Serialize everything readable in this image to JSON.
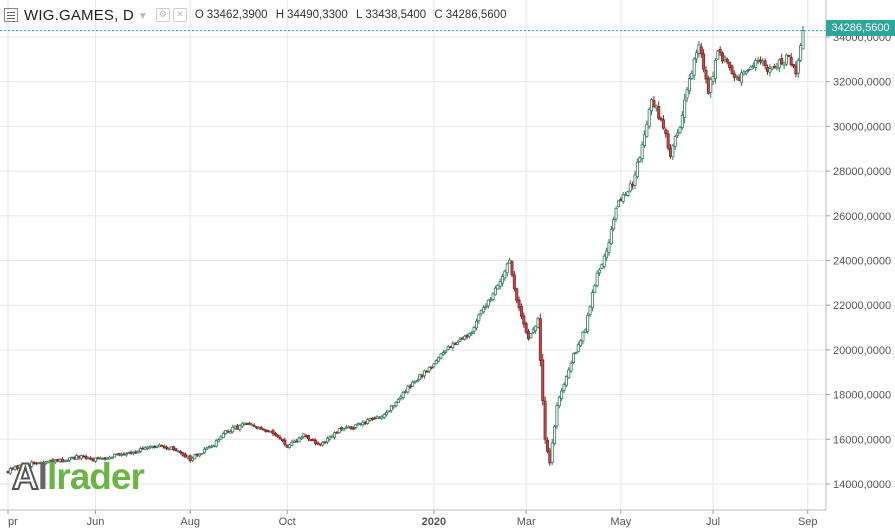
{
  "header": {
    "symbol": "WIG.GAMES, D",
    "o_key": "O",
    "o_val": "33462,3900",
    "h_key": "H",
    "h_val": "34490,3300",
    "l_key": "L",
    "l_val": "33438,5400",
    "c_key": "C",
    "c_val": "34286,5600"
  },
  "last_price_label": "34286,5600",
  "watermark": {
    "part1": "A",
    "part2": "l",
    "part3": "lrader"
  },
  "colors": {
    "up_fill": "#ffffff",
    "up_border": "#2f7a5a",
    "down_fill": "#c84a4a",
    "down_border": "#7a2424",
    "grid": "#e6e6e6",
    "badge": "#2ea79b",
    "axis_text": "#555555"
  },
  "chart_data": {
    "type": "candlestick",
    "title": "WIG.GAMES, D",
    "ylim": [
      13000,
      35000
    ],
    "y_ticks": [
      14000,
      16000,
      18000,
      20000,
      22000,
      24000,
      26000,
      28000,
      30000,
      32000,
      34000
    ],
    "y_tick_labels": [
      "14000,0000",
      "16000,0000",
      "18000,0000",
      "20000,0000",
      "22000,0000",
      "24000,0000",
      "26000,0000",
      "28000,0000",
      "30000,0000",
      "32000,0000",
      "34000,0000"
    ],
    "x_tick_labels": [
      "pr",
      "Jun",
      "Aug",
      "Oct",
      "2020",
      "Mar",
      "May",
      "Jul",
      "Sep"
    ],
    "x_tick_bold": [
      false,
      false,
      false,
      false,
      true,
      false,
      false,
      false,
      false
    ],
    "x_tick_index": [
      0,
      37,
      77,
      118,
      180,
      219,
      259,
      298,
      338
    ],
    "last_close": 34286.56,
    "ohlc_points": [
      [
        0,
        14600
      ],
      [
        10,
        14900
      ],
      [
        20,
        15000
      ],
      [
        30,
        15200
      ],
      [
        37,
        15100
      ],
      [
        45,
        15300
      ],
      [
        55,
        15500
      ],
      [
        65,
        15700
      ],
      [
        72,
        15500
      ],
      [
        77,
        15100
      ],
      [
        85,
        15600
      ],
      [
        92,
        16300
      ],
      [
        100,
        16700
      ],
      [
        108,
        16400
      ],
      [
        115,
        16100
      ],
      [
        118,
        15600
      ],
      [
        125,
        16200
      ],
      [
        132,
        15700
      ],
      [
        140,
        16400
      ],
      [
        150,
        16700
      ],
      [
        160,
        17200
      ],
      [
        170,
        18400
      ],
      [
        180,
        19400
      ],
      [
        188,
        20300
      ],
      [
        195,
        20700
      ],
      [
        203,
        22200
      ],
      [
        212,
        23900
      ],
      [
        215,
        22300
      ],
      [
        220,
        20500
      ],
      [
        224,
        21300
      ],
      [
        227,
        16000
      ],
      [
        229,
        14900
      ],
      [
        232,
        17500
      ],
      [
        236,
        18900
      ],
      [
        240,
        20000
      ],
      [
        244,
        21000
      ],
      [
        248,
        23000
      ],
      [
        253,
        24500
      ],
      [
        258,
        26700
      ],
      [
        264,
        27400
      ],
      [
        268,
        29200
      ],
      [
        272,
        31200
      ],
      [
        276,
        30300
      ],
      [
        280,
        28800
      ],
      [
        284,
        30100
      ],
      [
        288,
        32200
      ],
      [
        292,
        33600
      ],
      [
        296,
        31500
      ],
      [
        300,
        33300
      ],
      [
        304,
        32800
      ],
      [
        308,
        32100
      ],
      [
        313,
        32500
      ],
      [
        318,
        33000
      ],
      [
        322,
        32400
      ],
      [
        326,
        32900
      ],
      [
        330,
        33100
      ],
      [
        333,
        32500
      ],
      [
        336,
        34286.56
      ]
    ]
  }
}
